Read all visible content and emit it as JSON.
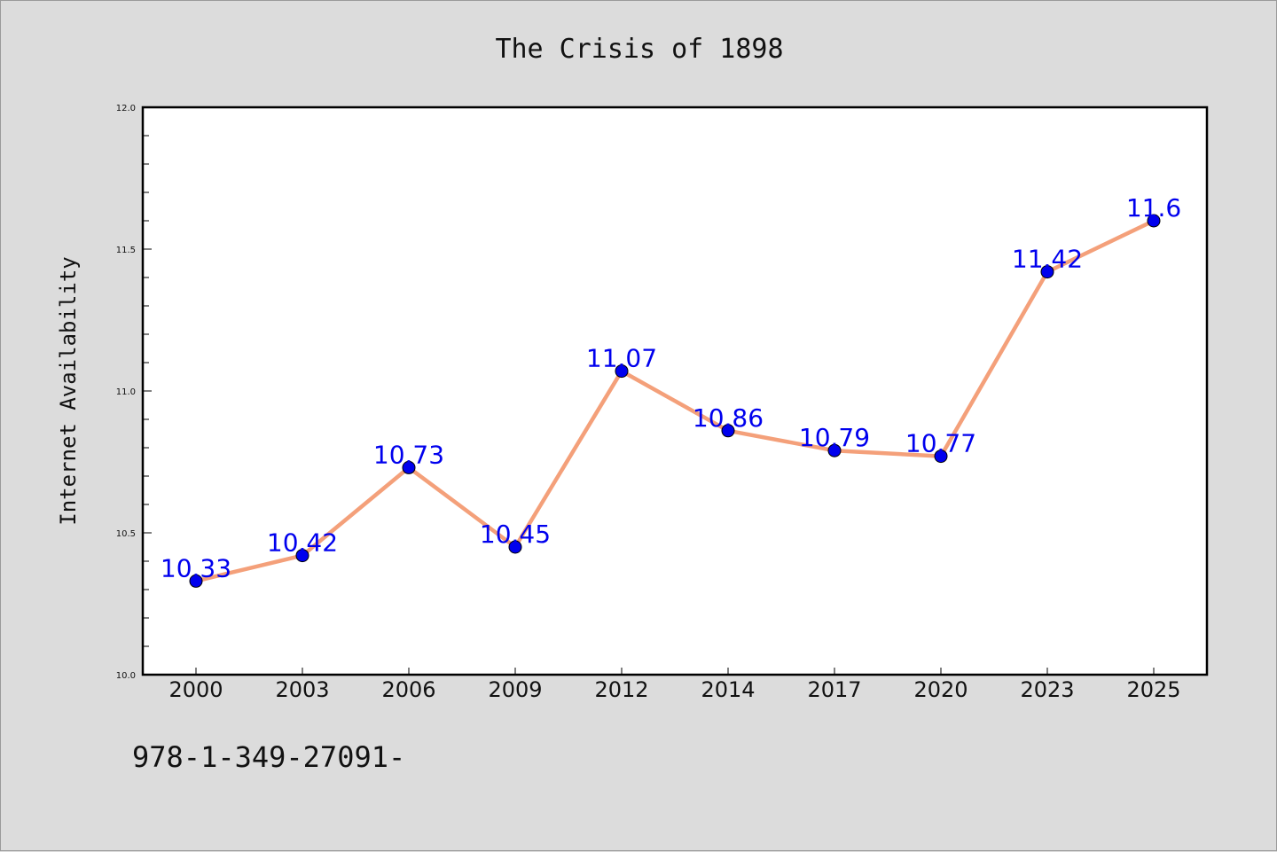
{
  "chart_data": {
    "type": "line",
    "title": "The Crisis of 1898",
    "xlabel": "",
    "ylabel": "Internet Availability",
    "categories": [
      "2000",
      "2003",
      "2006",
      "2009",
      "2012",
      "2014",
      "2017",
      "2020",
      "2023",
      "2025"
    ],
    "series": [
      {
        "values": [
          10.33,
          10.42,
          10.73,
          10.45,
          11.07,
          10.86,
          10.79,
          10.77,
          11.42,
          11.6
        ],
        "data_labels": [
          "10.33",
          "10.42",
          "10.73",
          "10.45",
          "11.07",
          "10.86",
          "10.79",
          "10.77",
          "11.42",
          "11.6"
        ],
        "line_color": "#f4a07a",
        "marker_color": "#0000ee"
      }
    ],
    "ylim": [
      10.0,
      12.0
    ],
    "yticks": [
      "10.0",
      "10.5",
      "11.0",
      "11.5",
      "12.0"
    ],
    "grid": false,
    "legend": "none"
  },
  "footer": {
    "text": "978-1-349-27091-"
  }
}
